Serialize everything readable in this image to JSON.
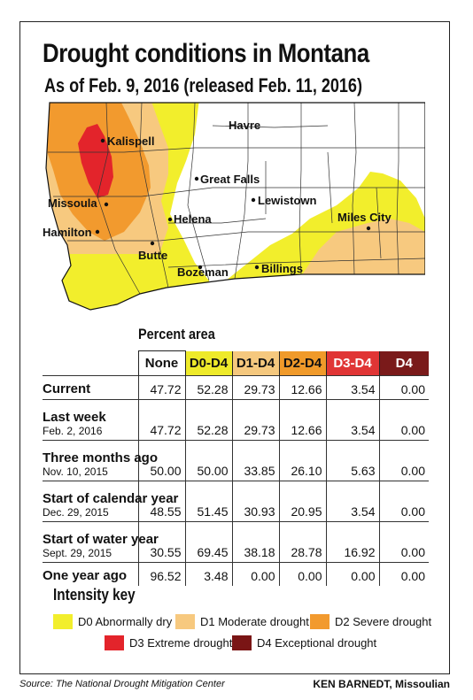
{
  "title": "Drought conditions in Montana",
  "subtitle": "As of Feb. 9, 2016 (released Feb. 11, 2016)",
  "cities": [
    "Kalispell",
    "Havre",
    "Great Falls",
    "Lewistown",
    "Missoula",
    "Helena",
    "Miles City",
    "Hamilton",
    "Butte",
    "Bozeman",
    "Billings"
  ],
  "colors": {
    "none": "#ffffff",
    "d0": "#f2ee2c",
    "d1": "#f7c97f",
    "d2": "#f29a2e",
    "d3": "#e3242b",
    "d4": "#7a1515",
    "header_d0": "#eeea2a",
    "header_d1": "#f5c87e",
    "header_d2": "#f09a2a",
    "header_d3": "#e03535",
    "header_d4": "#7a1a1a"
  },
  "chart_data": {
    "type": "table",
    "title": "Percent area",
    "columns": [
      "None",
      "D0-D4",
      "D1-D4",
      "D2-D4",
      "D3-D4",
      "D4"
    ],
    "rows": [
      {
        "label": "Current",
        "date": "",
        "values": [
          "47.72",
          "52.28",
          "29.73",
          "12.66",
          "3.54",
          "0.00"
        ]
      },
      {
        "label": "Last week",
        "date": "Feb. 2, 2016",
        "values": [
          "47.72",
          "52.28",
          "29.73",
          "12.66",
          "3.54",
          "0.00"
        ]
      },
      {
        "label": "Three months ago",
        "date": "Nov. 10, 2015",
        "values": [
          "50.00",
          "50.00",
          "33.85",
          "26.10",
          "5.63",
          "0.00"
        ]
      },
      {
        "label": "Start of calendar year",
        "date": "Dec. 29, 2015",
        "values": [
          "48.55",
          "51.45",
          "30.93",
          "20.95",
          "3.54",
          "0.00"
        ]
      },
      {
        "label": "Start of water year",
        "date": "Sept. 29, 2015",
        "values": [
          "30.55",
          "69.45",
          "38.18",
          "28.78",
          "16.92",
          "0.00"
        ]
      },
      {
        "label": "One year ago",
        "date": "",
        "values": [
          "96.52",
          "3.48",
          "0.00",
          "0.00",
          "0.00",
          "0.00"
        ]
      }
    ]
  },
  "key": {
    "title": "Intensity key",
    "items": [
      {
        "label": "D0 Abnormally dry",
        "color": "#f2ee2c"
      },
      {
        "label": "D1 Moderate drought",
        "color": "#f7c97f"
      },
      {
        "label": "D2 Severe drought",
        "color": "#f29a2e"
      },
      {
        "label": "D3 Extreme drought",
        "color": "#e3242b"
      },
      {
        "label": "D4 Exceptional drought",
        "color": "#7a1515"
      }
    ]
  },
  "source": "Source: The National Drought Mitigation Center",
  "credit": "KEN BARNEDT, Missoulian"
}
